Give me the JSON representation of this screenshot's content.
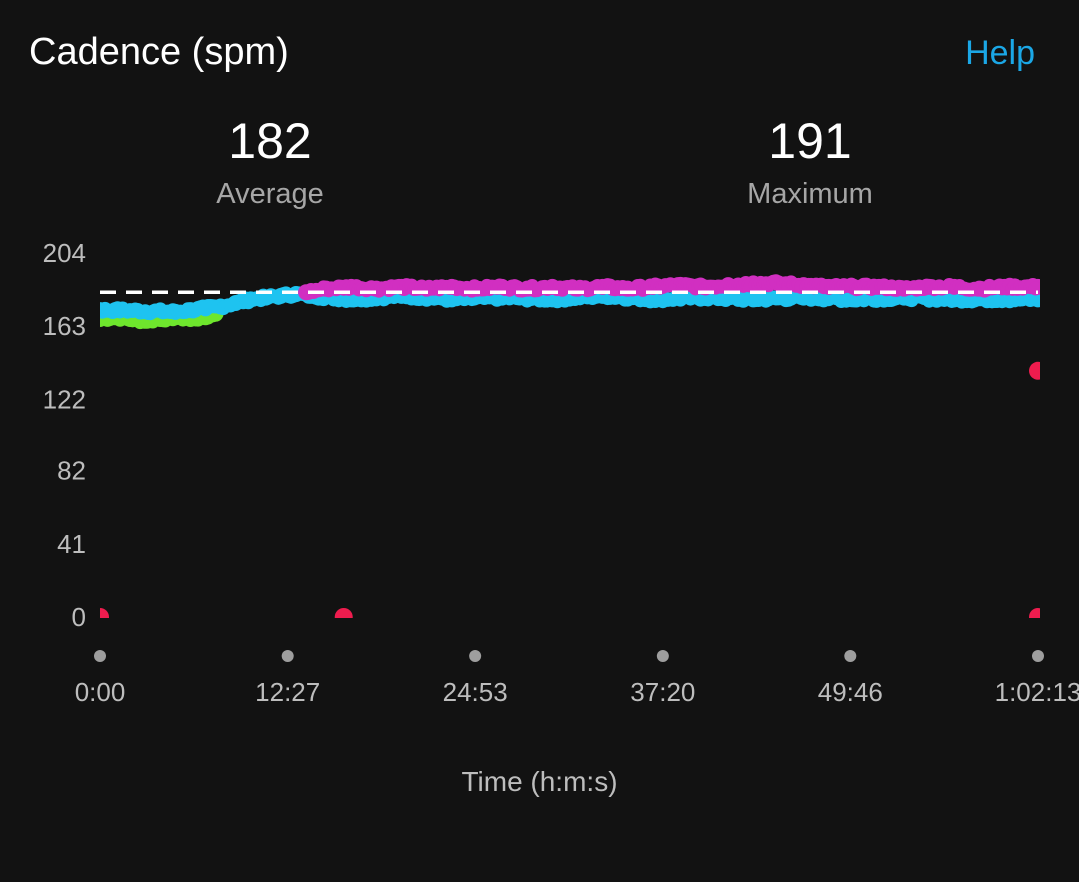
{
  "header": {
    "title": "Cadence (spm)",
    "help_label": "Help"
  },
  "stats": {
    "average_value": "182",
    "average_label": "Average",
    "maximum_value": "191",
    "maximum_label": "Maximum"
  },
  "colors": {
    "background": "#121212",
    "help_link": "#1ba7e6",
    "zone_green": "#6ee62d",
    "zone_blue": "#1ec3f0",
    "zone_purple": "#d12fc1",
    "zone_red": "#ee1c4e",
    "average_line": "#ffffff",
    "tick_marker": "#9e9e9e"
  },
  "chart_data": {
    "type": "scatter",
    "title": "Cadence (spm)",
    "xlabel": "Time (h:m:s)",
    "ylabel": "",
    "y_ticks": [
      0,
      41,
      82,
      122,
      163,
      204
    ],
    "y_tick_labels": [
      "0",
      "41",
      "82",
      "122",
      "163",
      "204"
    ],
    "x_ticks_seconds": [
      0,
      747,
      1493,
      2240,
      2986,
      3733
    ],
    "x_tick_labels": [
      "0:00",
      "12:27",
      "24:53",
      "37:20",
      "49:46",
      "1:02:13"
    ],
    "xlim_seconds": [
      0,
      3733
    ],
    "ylim": [
      0,
      204
    ],
    "average_line": 182,
    "maximum": 191,
    "grid": false,
    "legend": "none",
    "series": [
      {
        "zone": "green",
        "color": "#6ee62d",
        "points": [
          [
            0,
            167
          ],
          [
            60,
            168
          ],
          [
            120,
            167
          ],
          [
            180,
            166
          ],
          [
            240,
            167
          ],
          [
            300,
            168
          ],
          [
            360,
            167
          ],
          [
            420,
            168
          ],
          [
            460,
            170
          ]
        ]
      },
      {
        "zone": "blue",
        "color": "#1ec3f0",
        "points": [
          [
            0,
            172
          ],
          [
            60,
            172
          ],
          [
            300,
            171
          ],
          [
            360,
            172
          ],
          [
            420,
            173
          ],
          [
            480,
            174
          ],
          [
            540,
            176
          ],
          [
            600,
            178
          ],
          [
            660,
            179
          ],
          [
            720,
            180
          ],
          [
            780,
            181
          ],
          [
            840,
            180
          ],
          [
            1000,
            178
          ],
          [
            1200,
            180
          ],
          [
            1400,
            178
          ],
          [
            1600,
            179
          ],
          [
            1800,
            178
          ],
          [
            2000,
            180
          ],
          [
            2200,
            178
          ],
          [
            2400,
            179
          ],
          [
            2600,
            178
          ],
          [
            2800,
            179
          ],
          [
            3000,
            178
          ],
          [
            3200,
            179
          ],
          [
            3400,
            178
          ],
          [
            3600,
            178
          ],
          [
            3733,
            178
          ]
        ]
      },
      {
        "zone": "purple",
        "color": "#d12fc1",
        "points": [
          [
            820,
            182
          ],
          [
            900,
            184
          ],
          [
            1000,
            185
          ],
          [
            1100,
            184
          ],
          [
            1200,
            185
          ],
          [
            1300,
            184
          ],
          [
            1400,
            185
          ],
          [
            1500,
            184
          ],
          [
            1600,
            185
          ],
          [
            1700,
            184
          ],
          [
            1800,
            185
          ],
          [
            1900,
            184
          ],
          [
            2000,
            185
          ],
          [
            2100,
            184
          ],
          [
            2200,
            185
          ],
          [
            2300,
            186
          ],
          [
            2400,
            185
          ],
          [
            2500,
            186
          ],
          [
            2600,
            187
          ],
          [
            2700,
            187
          ],
          [
            2800,
            186
          ],
          [
            2900,
            185
          ],
          [
            3000,
            185
          ],
          [
            3100,
            185
          ],
          [
            3200,
            184
          ],
          [
            3300,
            185
          ],
          [
            3400,
            185
          ],
          [
            3500,
            184
          ],
          [
            3600,
            185
          ],
          [
            3733,
            185
          ]
        ]
      },
      {
        "zone": "red",
        "color": "#ee1c4e",
        "points": [
          [
            0,
            0
          ],
          [
            970,
            0
          ],
          [
            3733,
            138
          ],
          [
            3733,
            0
          ]
        ]
      }
    ]
  }
}
